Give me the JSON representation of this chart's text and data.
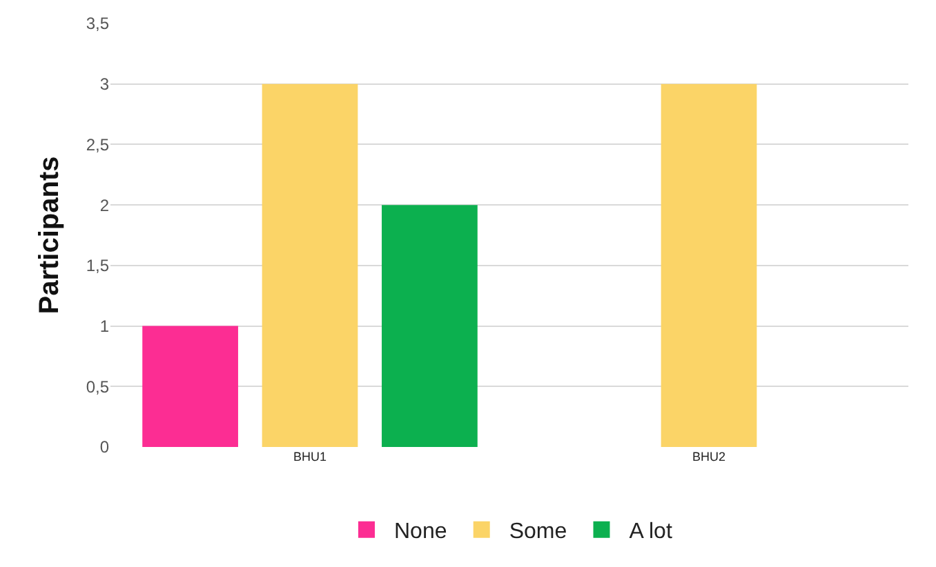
{
  "chart_data": {
    "type": "bar",
    "ylabel": "Participants",
    "categories": [
      "BHU1",
      "BHU2"
    ],
    "series": [
      {
        "name": "None",
        "color": "#fc2d93",
        "values": [
          1,
          0
        ]
      },
      {
        "name": "Some",
        "color": "#fbd467",
        "values": [
          3,
          3
        ]
      },
      {
        "name": "A lot",
        "color": "#0cb04f",
        "values": [
          2,
          0
        ]
      }
    ],
    "ylim": [
      0,
      3.5
    ],
    "yticks": [
      0,
      {
        "value": 0.5,
        "label": "0,5"
      },
      1,
      {
        "value": 1.5,
        "label": "1,5"
      },
      2,
      {
        "value": 2.5,
        "label": "2,5"
      },
      3,
      {
        "value": 3.5,
        "label": "3,5"
      }
    ],
    "grid": "y",
    "legend": "bottom"
  }
}
